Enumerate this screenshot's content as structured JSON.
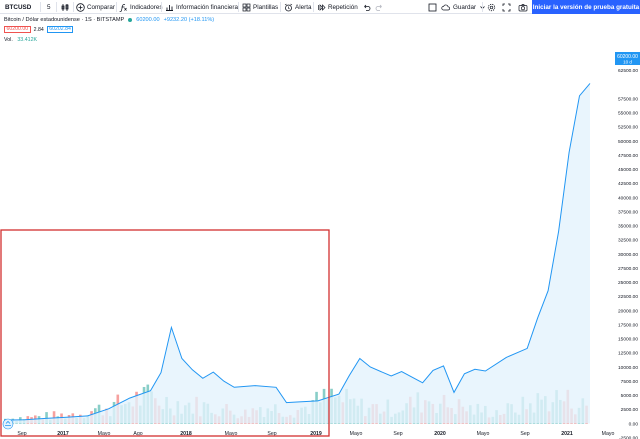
{
  "toolbar": {
    "symbol": "BTCUSD",
    "interval": "5",
    "compare_label": "Comparar",
    "indicators_label": "Indicadores",
    "financials_label": "Información financiera",
    "templates_label": "Plantillas",
    "alert_label": "Alerta",
    "replay_label": "Repetición",
    "save_label": "Guardar",
    "cta_label": "Iniciar la versión de prueba gratuita"
  },
  "legend": {
    "title": "Bitcoin / Dólar estadounidense · 1S · BITSTAMP",
    "price": "60200.00",
    "change": "+9232.20 (+18.11%)",
    "bid": "60200.00",
    "spread": "2.84",
    "ask": "60202.84",
    "volume_label": "Vol.",
    "volume_value": "33.412K"
  },
  "price_axis": {
    "ticks": [
      "65000.00",
      "62500.00",
      "57500.00",
      "55000.00",
      "52500.00",
      "50000.00",
      "47500.00",
      "45000.00",
      "42500.00",
      "40000.00",
      "37500.00",
      "35000.00",
      "32500.00",
      "30000.00",
      "27500.00",
      "25000.00",
      "22500.00",
      "20000.00",
      "17500.00",
      "15000.00",
      "12500.00",
      "10000.00",
      "7500.00",
      "5000.00",
      "2500.00",
      "0.00",
      "-2500.00",
      "-5000.00"
    ],
    "last_price_label": "60200.00",
    "last_price_sub": "10 d"
  },
  "time_axis": {
    "labels": [
      "Sep",
      "2017",
      "Mayo",
      "Ago",
      "2018",
      "Mayo",
      "Sep",
      "2019",
      "Mayo",
      "Sep",
      "2020",
      "Mayo",
      "Sep",
      "2021",
      "Mayo"
    ]
  },
  "colors": {
    "line": "#2196f3",
    "area": "#e3f2fd",
    "volume_up": "#26a69a",
    "volume_down": "#ef5350",
    "accent": "#2962ff",
    "highlight_box": "#d32f2f"
  },
  "chart_data": {
    "type": "area",
    "x": [
      "2016-08",
      "2016-10",
      "2016-12",
      "2017-02",
      "2017-04",
      "2017-06",
      "2017-08",
      "2017-10",
      "2017-11",
      "2017-12",
      "2018-01",
      "2018-02",
      "2018-03",
      "2018-04",
      "2018-05",
      "2018-06",
      "2018-08",
      "2018-10",
      "2018-11",
      "2018-12",
      "2019-02",
      "2019-04",
      "2019-05",
      "2019-06",
      "2019-07",
      "2019-09",
      "2019-10",
      "2019-12",
      "2020-01",
      "2020-02",
      "2020-03",
      "2020-04",
      "2020-05",
      "2020-06",
      "2020-08",
      "2020-10",
      "2020-11",
      "2020-12",
      "2021-01",
      "2021-02",
      "2021-03",
      "2021-04"
    ],
    "values": [
      600,
      650,
      900,
      1100,
      1350,
      2600,
      4500,
      5800,
      9000,
      17000,
      11500,
      9500,
      8000,
      9100,
      7500,
      6400,
      6700,
      6400,
      3700,
      3800,
      4000,
      5200,
      8500,
      11500,
      10000,
      8400,
      9200,
      7200,
      9400,
      10200,
      5500,
      8800,
      9600,
      9300,
      11700,
      13300,
      18700,
      23500,
      34000,
      48000,
      58000,
      60200
    ],
    "volume_values": [
      6,
      7,
      8,
      9,
      10,
      12,
      15,
      18,
      22,
      28,
      30,
      26,
      24,
      22,
      20,
      18,
      15,
      12,
      20,
      18,
      16,
      18,
      25,
      30,
      26,
      20,
      19,
      18,
      20,
      24,
      30,
      22,
      20,
      16,
      15,
      14,
      18,
      22,
      28,
      30,
      25,
      20
    ],
    "ylim": [
      -5000,
      65000
    ],
    "xlabel": "",
    "ylabel": ""
  }
}
